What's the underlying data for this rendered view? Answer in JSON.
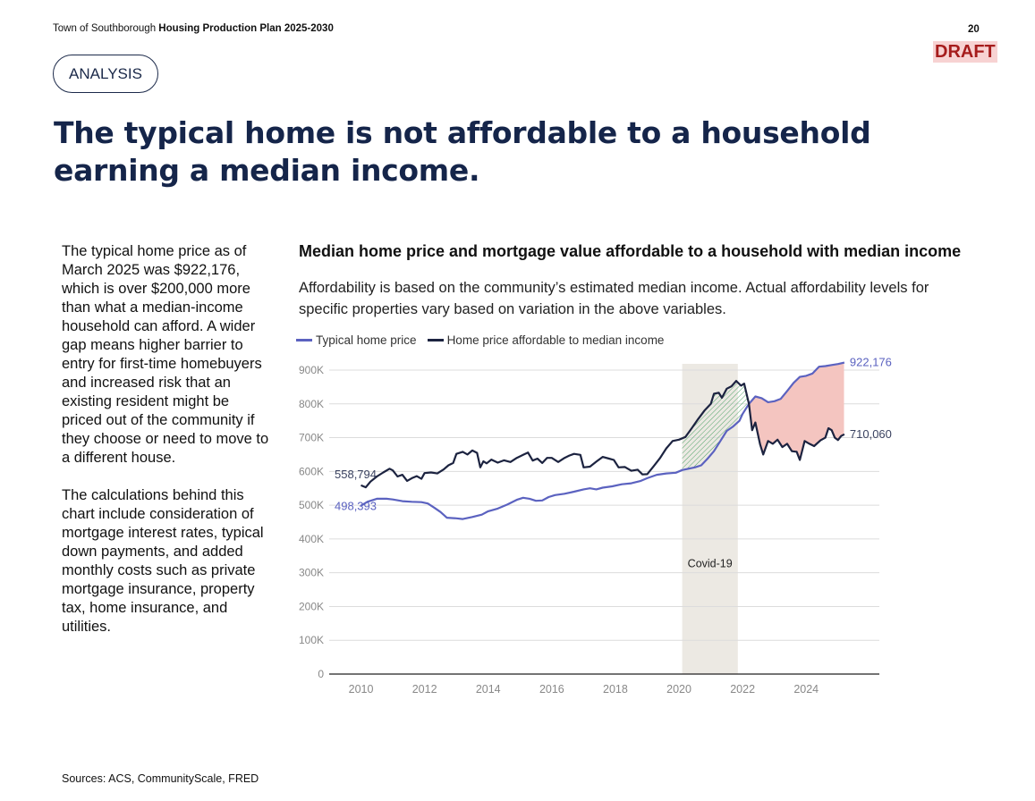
{
  "header": {
    "town": "Town of Southborough",
    "plan": "Housing Production Plan 2025-2030",
    "page_number": "20",
    "draft_label": "DRAFT"
  },
  "section_pill": "ANALYSIS",
  "headline": "The typical home is not affordable to a household earning a median income.",
  "sidebar": {
    "paragraph1": "The typical home price as of March 2025 was $922,176, which is over $200,000 more than what a median-income household can afford. A wider gap means higher barrier to entry for first-time homebuyers and increased risk that an existing resident might be priced out of the community if they choose or need to move to a different house.",
    "paragraph2": "The calculations behind this chart include consideration of mortgage interest rates, typical down payments, and added monthly costs such as private mortgage insurance, property tax, home insurance, and utilities."
  },
  "sources": "Sources: ACS, CommunityScale, FRED",
  "colors": {
    "typical": "#5b62c0",
    "affordable": "#1c2340",
    "gap_fill": "#f4c5c0",
    "covid_band": "#ece9e3",
    "green_hatch": "#3f9b5a",
    "draft_text": "#a61c1c",
    "headline": "#15254a"
  },
  "chart_data": {
    "type": "line",
    "title": "Median home price and mortgage value affordable to a household with median income",
    "subtitle": "Affordability is based on the community’s estimated median income. Actual affordability levels for specific properties vary based on variation in the above variables.",
    "ylim": [
      0,
      900000
    ],
    "yticks": [
      0,
      100000,
      200000,
      300000,
      400000,
      500000,
      600000,
      700000,
      800000,
      900000
    ],
    "ytick_labels": [
      "0",
      "100K",
      "200K",
      "300K",
      "400K",
      "500K",
      "600K",
      "700K",
      "800K",
      "900K"
    ],
    "xlim": [
      2009.0,
      2026.3
    ],
    "xticks": [
      2010,
      2012,
      2014,
      2016,
      2018,
      2020,
      2022,
      2024
    ],
    "xtick_labels": [
      "2010",
      "2012",
      "2014",
      "2016",
      "2018",
      "2020",
      "2022",
      "2024"
    ],
    "legend_position": "top-left",
    "grid": "horizontal",
    "covid_band": {
      "start": 2020.1,
      "end": 2021.85,
      "label": "Covid-19"
    },
    "series": [
      {
        "name": "Typical home price",
        "key": "typical",
        "start_label": "498,393",
        "end_label": "922,176",
        "points": [
          [
            2010.0,
            498393
          ],
          [
            2010.2,
            510000
          ],
          [
            2010.5,
            519000
          ],
          [
            2010.8,
            519000
          ],
          [
            2011.0,
            517000
          ],
          [
            2011.3,
            512000
          ],
          [
            2011.6,
            510000
          ],
          [
            2011.9,
            509000
          ],
          [
            2012.1,
            505000
          ],
          [
            2012.3,
            493000
          ],
          [
            2012.5,
            480000
          ],
          [
            2012.7,
            463000
          ],
          [
            2013.0,
            461000
          ],
          [
            2013.2,
            459000
          ],
          [
            2013.5,
            465000
          ],
          [
            2013.8,
            472000
          ],
          [
            2014.0,
            482000
          ],
          [
            2014.3,
            490000
          ],
          [
            2014.6,
            502000
          ],
          [
            2014.9,
            516000
          ],
          [
            2015.1,
            522000
          ],
          [
            2015.3,
            519000
          ],
          [
            2015.5,
            513000
          ],
          [
            2015.7,
            514000
          ],
          [
            2015.9,
            524000
          ],
          [
            2016.1,
            530000
          ],
          [
            2016.4,
            534000
          ],
          [
            2016.7,
            540000
          ],
          [
            2017.0,
            547000
          ],
          [
            2017.2,
            550000
          ],
          [
            2017.4,
            547000
          ],
          [
            2017.6,
            552000
          ],
          [
            2017.9,
            556000
          ],
          [
            2018.2,
            562000
          ],
          [
            2018.5,
            565000
          ],
          [
            2018.8,
            572000
          ],
          [
            2019.0,
            580000
          ],
          [
            2019.3,
            590000
          ],
          [
            2019.6,
            594000
          ],
          [
            2019.9,
            596000
          ],
          [
            2020.1,
            604000
          ],
          [
            2020.3,
            608000
          ],
          [
            2020.5,
            612000
          ],
          [
            2020.7,
            618000
          ],
          [
            2020.9,
            638000
          ],
          [
            2021.1,
            660000
          ],
          [
            2021.3,
            690000
          ],
          [
            2021.5,
            720000
          ],
          [
            2021.7,
            733000
          ],
          [
            2021.9,
            750000
          ],
          [
            2022.0,
            770000
          ],
          [
            2022.2,
            800000
          ],
          [
            2022.4,
            822000
          ],
          [
            2022.6,
            817000
          ],
          [
            2022.8,
            805000
          ],
          [
            2023.0,
            808000
          ],
          [
            2023.2,
            815000
          ],
          [
            2023.4,
            838000
          ],
          [
            2023.6,
            862000
          ],
          [
            2023.8,
            880000
          ],
          [
            2024.0,
            883000
          ],
          [
            2024.2,
            890000
          ],
          [
            2024.4,
            910000
          ],
          [
            2024.6,
            912000
          ],
          [
            2024.8,
            915000
          ],
          [
            2025.0,
            918000
          ],
          [
            2025.2,
            922176
          ]
        ]
      },
      {
        "name": "Home price affordable to median income",
        "key": "affordable",
        "start_label": "558,794",
        "end_label": "710,060",
        "points": [
          [
            2010.0,
            558794
          ],
          [
            2010.15,
            553000
          ],
          [
            2010.3,
            570000
          ],
          [
            2010.5,
            585000
          ],
          [
            2010.7,
            597000
          ],
          [
            2010.9,
            608000
          ],
          [
            2011.0,
            603000
          ],
          [
            2011.15,
            585000
          ],
          [
            2011.3,
            590000
          ],
          [
            2011.45,
            572000
          ],
          [
            2011.6,
            580000
          ],
          [
            2011.75,
            586000
          ],
          [
            2011.9,
            578000
          ],
          [
            2012.0,
            595000
          ],
          [
            2012.2,
            597000
          ],
          [
            2012.4,
            594000
          ],
          [
            2012.6,
            606000
          ],
          [
            2012.75,
            618000
          ],
          [
            2012.9,
            625000
          ],
          [
            2013.0,
            652000
          ],
          [
            2013.2,
            658000
          ],
          [
            2013.35,
            650000
          ],
          [
            2013.5,
            662000
          ],
          [
            2013.65,
            655000
          ],
          [
            2013.75,
            612000
          ],
          [
            2013.85,
            630000
          ],
          [
            2013.95,
            624000
          ],
          [
            2014.1,
            635000
          ],
          [
            2014.3,
            626000
          ],
          [
            2014.5,
            633000
          ],
          [
            2014.7,
            628000
          ],
          [
            2014.9,
            640000
          ],
          [
            2015.1,
            649000
          ],
          [
            2015.25,
            656000
          ],
          [
            2015.4,
            632000
          ],
          [
            2015.55,
            638000
          ],
          [
            2015.7,
            625000
          ],
          [
            2015.85,
            640000
          ],
          [
            2016.0,
            640000
          ],
          [
            2016.2,
            628000
          ],
          [
            2016.4,
            640000
          ],
          [
            2016.55,
            647000
          ],
          [
            2016.7,
            652000
          ],
          [
            2016.9,
            649000
          ],
          [
            2017.0,
            612000
          ],
          [
            2017.2,
            614000
          ],
          [
            2017.4,
            629000
          ],
          [
            2017.6,
            643000
          ],
          [
            2017.8,
            638000
          ],
          [
            2017.95,
            634000
          ],
          [
            2018.1,
            612000
          ],
          [
            2018.3,
            613000
          ],
          [
            2018.5,
            602000
          ],
          [
            2018.7,
            605000
          ],
          [
            2018.85,
            591000
          ],
          [
            2019.0,
            592000
          ],
          [
            2019.2,
            615000
          ],
          [
            2019.4,
            639000
          ],
          [
            2019.6,
            668000
          ],
          [
            2019.8,
            690000
          ],
          [
            2020.0,
            694000
          ],
          [
            2020.2,
            702000
          ],
          [
            2020.4,
            728000
          ],
          [
            2020.6,
            755000
          ],
          [
            2020.8,
            780000
          ],
          [
            2021.0,
            800000
          ],
          [
            2021.1,
            830000
          ],
          [
            2021.25,
            833000
          ],
          [
            2021.35,
            818000
          ],
          [
            2021.5,
            845000
          ],
          [
            2021.65,
            852000
          ],
          [
            2021.8,
            868000
          ],
          [
            2021.95,
            854000
          ],
          [
            2022.05,
            860000
          ],
          [
            2022.2,
            800000
          ],
          [
            2022.3,
            722000
          ],
          [
            2022.4,
            745000
          ],
          [
            2022.55,
            680000
          ],
          [
            2022.65,
            650000
          ],
          [
            2022.8,
            690000
          ],
          [
            2022.95,
            682000
          ],
          [
            2023.1,
            694000
          ],
          [
            2023.25,
            672000
          ],
          [
            2023.4,
            682000
          ],
          [
            2023.55,
            660000
          ],
          [
            2023.7,
            658000
          ],
          [
            2023.8,
            634000
          ],
          [
            2023.95,
            690000
          ],
          [
            2024.1,
            682000
          ],
          [
            2024.25,
            675000
          ],
          [
            2024.45,
            692000
          ],
          [
            2024.6,
            700000
          ],
          [
            2024.7,
            728000
          ],
          [
            2024.8,
            722000
          ],
          [
            2024.9,
            700000
          ],
          [
            2025.0,
            693000
          ],
          [
            2025.1,
            705000
          ],
          [
            2025.2,
            710060
          ]
        ]
      }
    ]
  }
}
